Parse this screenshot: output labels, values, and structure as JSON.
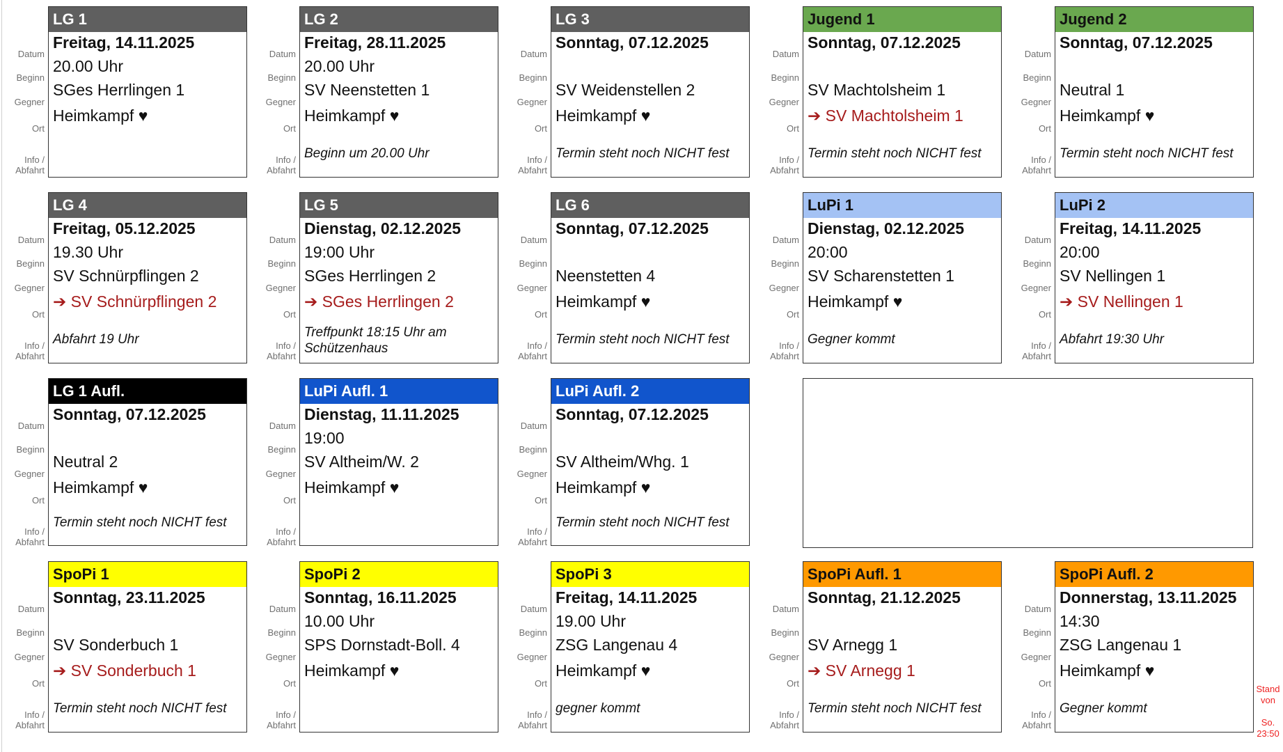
{
  "labels": {
    "datum": "Datum",
    "beginn": "Beginn",
    "gegner": "Gegner",
    "ort": "Ort",
    "info1": "Info /",
    "info2": "Abfahrt"
  },
  "cards": [
    {
      "title": "LG 1",
      "color": "#5f5f5f",
      "text": "#ffffff",
      "datum": "Freitag, 14.11.2025",
      "beginn": "20.00 Uhr",
      "gegner": "SGes Herrlingen 1",
      "ort": "Heimkampf ♥",
      "away": false,
      "info": ""
    },
    {
      "title": "LG 2",
      "color": "#5f5f5f",
      "text": "#ffffff",
      "datum": "Freitag, 28.11.2025",
      "beginn": "20.00 Uhr",
      "gegner": "SV Neenstetten 1",
      "ort": "Heimkampf ♥",
      "away": false,
      "info": "Beginn um 20.00 Uhr"
    },
    {
      "title": "LG 3",
      "color": "#5f5f5f",
      "text": "#ffffff",
      "datum": "Sonntag, 07.12.2025",
      "beginn": "",
      "gegner": "SV Weidenstellen 2",
      "ort": "Heimkampf ♥",
      "away": false,
      "info": "Termin steht noch NICHT fest"
    },
    {
      "title": "Jugend 1",
      "color": "#6aa84f",
      "text": "#111111",
      "datum": "Sonntag, 07.12.2025",
      "beginn": "",
      "gegner": "SV Machtolsheim 1",
      "ort": "➔ SV Machtolsheim 1",
      "away": true,
      "info": "Termin steht noch NICHT fest"
    },
    {
      "title": "Jugend 2",
      "color": "#6aa84f",
      "text": "#111111",
      "datum": "Sonntag, 07.12.2025",
      "beginn": "",
      "gegner": "Neutral 1",
      "ort": "Heimkampf ♥",
      "away": false,
      "info": "Termin steht noch NICHT fest"
    },
    {
      "title": "LG 4",
      "color": "#5f5f5f",
      "text": "#ffffff",
      "datum": "Freitag, 05.12.2025",
      "beginn": "19.30 Uhr",
      "gegner": "SV Schnürpflingen 2",
      "ort": "➔ SV Schnürpflingen 2",
      "away": true,
      "info": "Abfahrt 19 Uhr"
    },
    {
      "title": "LG 5",
      "color": "#5f5f5f",
      "text": "#ffffff",
      "datum": "Dienstag, 02.12.2025",
      "beginn": "19:00 Uhr",
      "gegner": "SGes Herrlingen 2",
      "ort": "➔ SGes Herrlingen 2",
      "away": true,
      "info": "Treffpunkt 18:15 Uhr am Schützenhaus"
    },
    {
      "title": "LG 6",
      "color": "#5f5f5f",
      "text": "#ffffff",
      "datum": "Sonntag, 07.12.2025",
      "beginn": "",
      "gegner": "Neenstetten 4",
      "ort": "Heimkampf ♥",
      "away": false,
      "info": "Termin steht noch NICHT fest"
    },
    {
      "title": "LuPi 1",
      "color": "#a4c2f4",
      "text": "#111111",
      "datum": "Dienstag, 02.12.2025",
      "beginn": "20:00",
      "gegner": "SV Scharenstetten 1",
      "ort": "Heimkampf ♥",
      "away": false,
      "info": "Gegner kommt"
    },
    {
      "title": "LuPi 2",
      "color": "#a4c2f4",
      "text": "#111111",
      "datum": "Freitag, 14.11.2025",
      "beginn": "20:00",
      "gegner": "SV Nellingen 1",
      "ort": "➔ SV Nellingen 1",
      "away": true,
      "info": "Abfahrt 19:30 Uhr"
    },
    {
      "title": "LG 1 Aufl.",
      "color": "#000000",
      "text": "#ffffff",
      "datum": "Sonntag, 07.12.2025",
      "beginn": "",
      "gegner": "Neutral 2",
      "ort": "Heimkampf ♥",
      "away": false,
      "info": "Termin steht noch NICHT fest"
    },
    {
      "title": "LuPi Aufl. 1",
      "color": "#1155cc",
      "text": "#ffffff",
      "datum": "Dienstag, 11.11.2025",
      "beginn": "19:00",
      "gegner": "SV Altheim/W. 2",
      "ort": "Heimkampf ♥",
      "away": false,
      "info": ""
    },
    {
      "title": "LuPi Aufl. 2",
      "color": "#1155cc",
      "text": "#ffffff",
      "datum": "Sonntag, 07.12.2025",
      "beginn": "",
      "gegner": "SV Altheim/Whg. 1",
      "ort": "Heimkampf ♥",
      "away": false,
      "info": "Termin steht noch NICHT fest"
    },
    {
      "title": "SpoPi 1",
      "color": "#ffff00",
      "text": "#111111",
      "datum": "Sonntag, 23.11.2025",
      "beginn": "",
      "gegner": "SV Sonderbuch 1",
      "ort": "➔ SV Sonderbuch 1",
      "away": true,
      "info": "Termin steht noch NICHT fest"
    },
    {
      "title": "SpoPi 2",
      "color": "#ffff00",
      "text": "#111111",
      "datum": "Sonntag, 16.11.2025",
      "beginn": "10.00 Uhr",
      "gegner": "SPS Dornstadt-Boll. 4",
      "ort": "Heimkampf ♥",
      "away": false,
      "info": ""
    },
    {
      "title": "SpoPi 3",
      "color": "#ffff00",
      "text": "#111111",
      "datum": "Freitag, 14.11.2025",
      "beginn": "19.00 Uhr",
      "gegner": "ZSG Langenau 4",
      "ort": "Heimkampf ♥",
      "away": false,
      "info": "gegner kommt"
    },
    {
      "title": "SpoPi Aufl. 1",
      "color": "#ff9900",
      "text": "#111111",
      "datum": "Sonntag, 21.12.2025",
      "beginn": "",
      "gegner": "SV Arnegg 1",
      "ort": "➔ SV Arnegg 1",
      "away": true,
      "info": "Termin steht noch NICHT fest"
    },
    {
      "title": "SpoPi Aufl. 2",
      "color": "#ff9900",
      "text": "#111111",
      "datum": "Donnerstag, 13.11.2025",
      "beginn": "14:30",
      "gegner": "ZSG Langenau 1",
      "ort": "Heimkampf ♥",
      "away": false,
      "info": "Gegner kommt"
    }
  ],
  "stand": {
    "line1": "Stand",
    "line2": "von",
    "line3": "So.",
    "line4": "23:50"
  }
}
